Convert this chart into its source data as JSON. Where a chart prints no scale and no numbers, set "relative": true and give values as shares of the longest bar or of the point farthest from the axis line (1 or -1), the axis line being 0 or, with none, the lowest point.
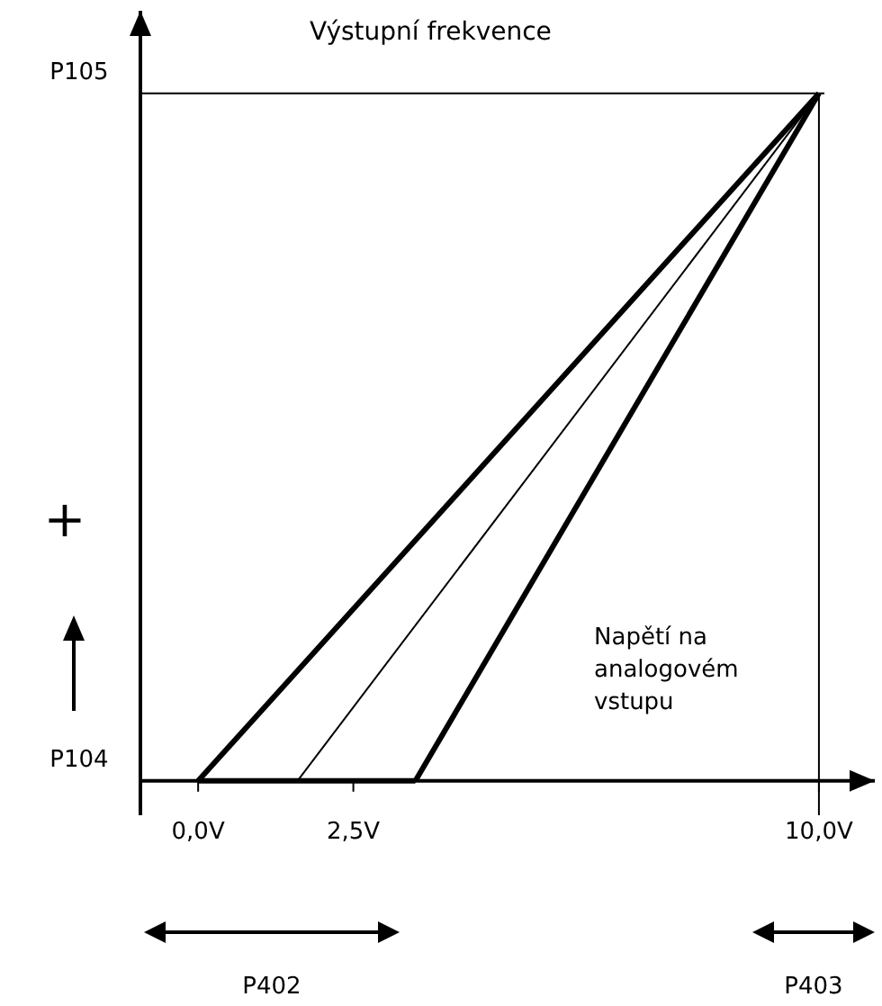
{
  "chart_data": {
    "type": "line",
    "title": "Výstupní frekvence",
    "xlim": [
      -0.93,
      10.9
    ],
    "xticks": [
      {
        "value": 0,
        "label": "0,0V"
      },
      {
        "value": 2.5,
        "label": "2,5V"
      },
      {
        "value": 10,
        "label": "10,0V"
      }
    ],
    "relative": true,
    "series": [
      {
        "color": "#000000",
        "x": [
          0,
          10
        ],
        "values": [
          0,
          1
        ]
      },
      {
        "color": "#000000",
        "x": [
          1.6,
          10
        ],
        "values": [
          0,
          1
        ]
      },
      {
        "color": "#000000",
        "x": [
          3.5,
          10
        ],
        "values": [
          0,
          1
        ]
      },
      {
        "color": "#000000",
        "x": [
          0,
          3.5
        ],
        "values": [
          0,
          0
        ]
      }
    ],
    "ref_lines": [
      {
        "axis": "y",
        "value": 1,
        "color": "#000000"
      },
      {
        "axis": "x",
        "value": 10,
        "color": "#000000"
      }
    ],
    "annotations": [
      "+",
      "Napětí na analogovém vstupu",
      "P402",
      "P403",
      "P104",
      "P105"
    ],
    "marker": "none",
    "line_style": "solid"
  }
}
